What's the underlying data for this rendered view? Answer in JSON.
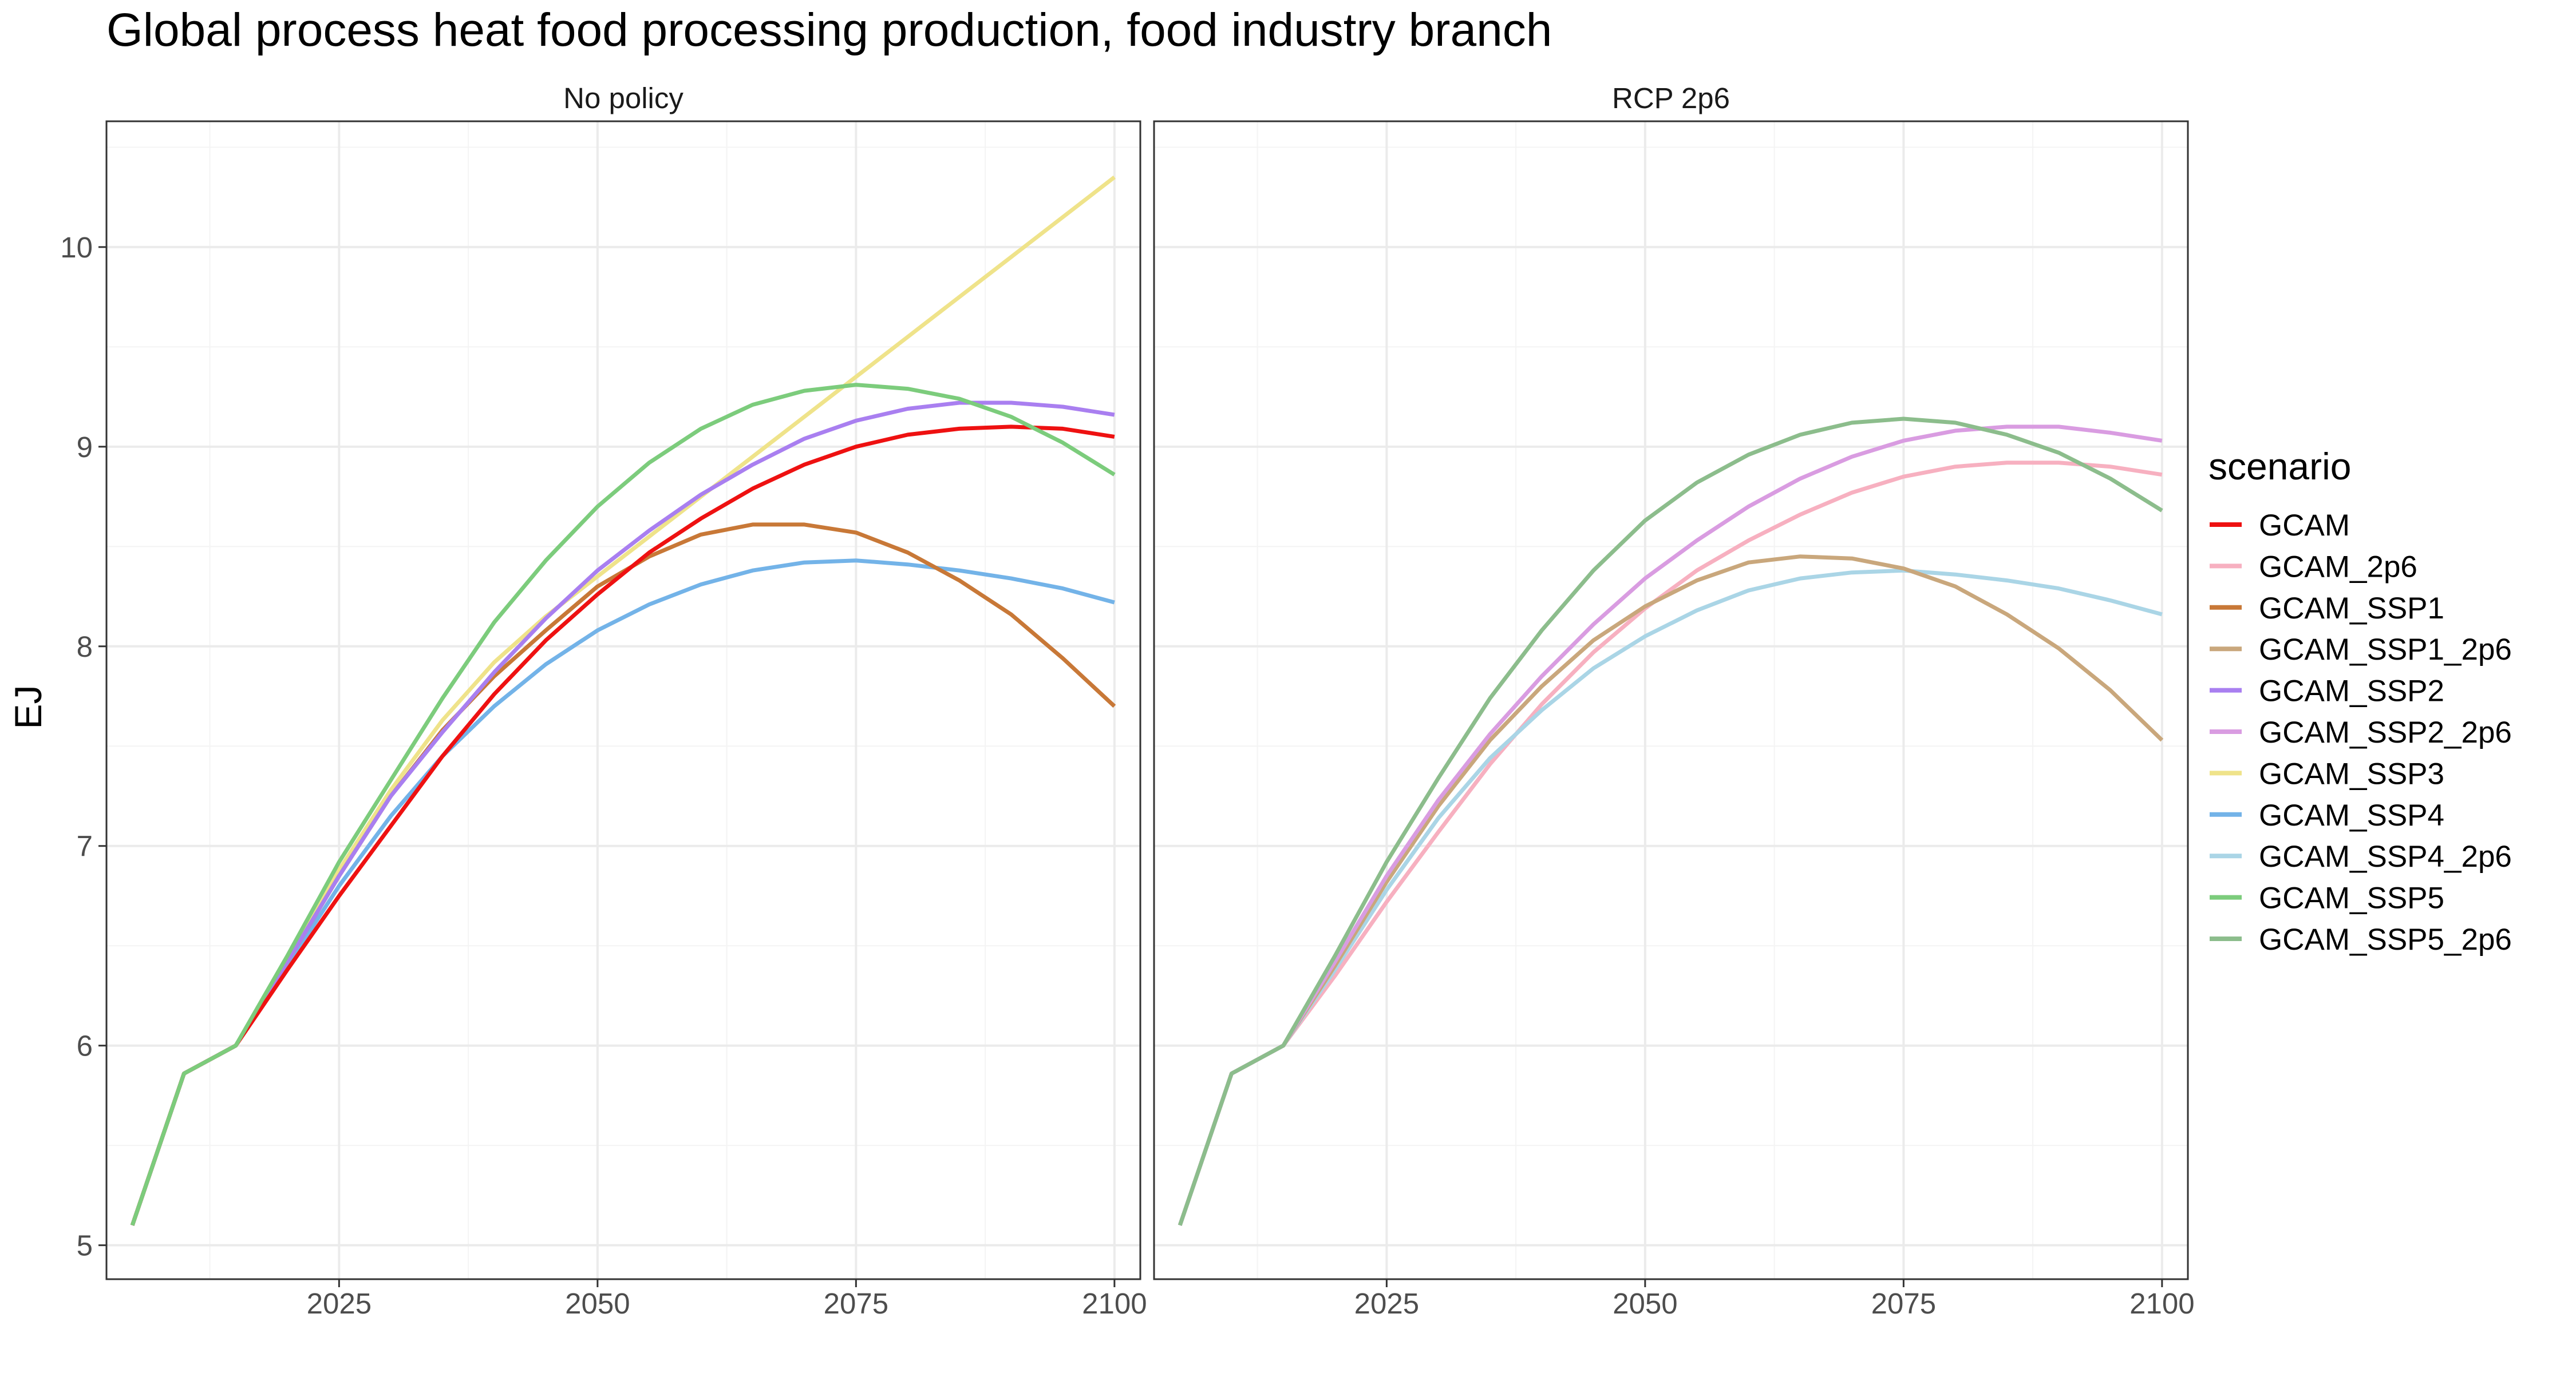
{
  "chart_data": {
    "type": "line",
    "title": "Global process heat food processing production, food industry branch",
    "xlabel": "",
    "ylabel": "EJ",
    "xlim": [
      2002.5,
      2102.5
    ],
    "ylim": [
      4.83,
      10.63
    ],
    "x_ticks": [
      2025,
      2050,
      2075,
      2100
    ],
    "y_ticks": [
      5,
      6,
      7,
      8,
      9,
      10
    ],
    "grid": true,
    "legend_title": "scenario",
    "legend_position": "right",
    "legend": [
      {
        "name": "GCAM",
        "color": "#ee1111"
      },
      {
        "name": "GCAM_2p6",
        "color": "#f7b0c0"
      },
      {
        "name": "GCAM_SSP1",
        "color": "#c87837"
      },
      {
        "name": "GCAM_SSP1_2p6",
        "color": "#c9a77c"
      },
      {
        "name": "GCAM_SSP2",
        "color": "#a97ff0"
      },
      {
        "name": "GCAM_SSP2_2p6",
        "color": "#d99ce1"
      },
      {
        "name": "GCAM_SSP3",
        "color": "#efe38a"
      },
      {
        "name": "GCAM_SSP4",
        "color": "#73b3e8"
      },
      {
        "name": "GCAM_SSP4_2p6",
        "color": "#aad5e6"
      },
      {
        "name": "GCAM_SSP5",
        "color": "#7ccc7c"
      },
      {
        "name": "GCAM_SSP5_2p6",
        "color": "#8cbd8c"
      }
    ],
    "panels": [
      {
        "label": "No policy",
        "series": [
          {
            "name": "GCAM_SSP3",
            "color": "#efe38a",
            "x": [
              2005,
              2010,
              2015,
              2020,
              2025,
              2030,
              2035,
              2040,
              2045,
              2050,
              2055,
              2060,
              2065,
              2070,
              2075,
              2080,
              2085,
              2090,
              2095,
              2100
            ],
            "y": [
              5.1,
              5.86,
              6.0,
              6.43,
              6.88,
              7.28,
              7.63,
              7.92,
              8.15,
              8.35,
              8.55,
              8.75,
              8.95,
              9.15,
              9.35,
              9.55,
              9.75,
              9.95,
              10.15,
              10.35
            ]
          },
          {
            "name": "GCAM_SSP4",
            "color": "#73b3e8",
            "x": [
              2005,
              2010,
              2015,
              2020,
              2025,
              2030,
              2035,
              2040,
              2045,
              2050,
              2055,
              2060,
              2065,
              2070,
              2075,
              2080,
              2085,
              2090,
              2095,
              2100
            ],
            "y": [
              5.1,
              5.86,
              6.0,
              6.4,
              6.8,
              7.15,
              7.45,
              7.7,
              7.91,
              8.08,
              8.21,
              8.31,
              8.38,
              8.42,
              8.43,
              8.41,
              8.38,
              8.34,
              8.29,
              8.22
            ]
          },
          {
            "name": "GCAM_SSP1",
            "color": "#c87837",
            "x": [
              2005,
              2010,
              2015,
              2020,
              2025,
              2030,
              2035,
              2040,
              2045,
              2050,
              2055,
              2060,
              2065,
              2070,
              2075,
              2080,
              2085,
              2090,
              2095,
              2100
            ],
            "y": [
              5.1,
              5.86,
              6.0,
              6.42,
              6.85,
              7.25,
              7.58,
              7.85,
              8.08,
              8.3,
              8.45,
              8.56,
              8.61,
              8.61,
              8.57,
              8.47,
              8.33,
              8.16,
              7.94,
              7.7
            ]
          },
          {
            "name": "GCAM_SSP2",
            "color": "#a97ff0",
            "x": [
              2005,
              2010,
              2015,
              2020,
              2025,
              2030,
              2035,
              2040,
              2045,
              2050,
              2055,
              2060,
              2065,
              2070,
              2075,
              2080,
              2085,
              2090,
              2095,
              2100
            ],
            "y": [
              5.1,
              5.86,
              6.0,
              6.42,
              6.85,
              7.25,
              7.57,
              7.87,
              8.14,
              8.38,
              8.58,
              8.76,
              8.91,
              9.04,
              9.13,
              9.19,
              9.22,
              9.22,
              9.2,
              9.16
            ]
          },
          {
            "name": "GCAM",
            "color": "#ee1111",
            "x": [
              2005,
              2010,
              2015,
              2020,
              2025,
              2030,
              2035,
              2040,
              2045,
              2050,
              2055,
              2060,
              2065,
              2070,
              2075,
              2080,
              2085,
              2090,
              2095,
              2100
            ],
            "y": [
              5.1,
              5.86,
              6.0,
              6.38,
              6.75,
              7.1,
              7.45,
              7.76,
              8.03,
              8.26,
              8.47,
              8.64,
              8.79,
              8.91,
              9.0,
              9.06,
              9.09,
              9.1,
              9.09,
              9.05
            ]
          },
          {
            "name": "GCAM_SSP5",
            "color": "#7ccc7c",
            "x": [
              2005,
              2010,
              2015,
              2020,
              2025,
              2030,
              2035,
              2040,
              2045,
              2050,
              2055,
              2060,
              2065,
              2070,
              2075,
              2080,
              2085,
              2090,
              2095,
              2100
            ],
            "y": [
              5.1,
              5.86,
              6.0,
              6.45,
              6.92,
              7.33,
              7.74,
              8.12,
              8.43,
              8.7,
              8.92,
              9.09,
              9.21,
              9.28,
              9.31,
              9.29,
              9.24,
              9.15,
              9.02,
              8.86
            ]
          }
        ]
      },
      {
        "label": "RCP 2p6",
        "series": [
          {
            "name": "GCAM_2p6",
            "color": "#f7b0c0",
            "x": [
              2005,
              2010,
              2015,
              2020,
              2025,
              2030,
              2035,
              2040,
              2045,
              2050,
              2055,
              2060,
              2065,
              2070,
              2075,
              2080,
              2085,
              2090,
              2095,
              2100
            ],
            "y": [
              5.1,
              5.86,
              6.0,
              6.35,
              6.72,
              7.07,
              7.41,
              7.71,
              7.97,
              8.19,
              8.38,
              8.53,
              8.66,
              8.77,
              8.85,
              8.9,
              8.92,
              8.92,
              8.9,
              8.86
            ]
          },
          {
            "name": "GCAM_SSP4_2p6",
            "color": "#aad5e6",
            "x": [
              2005,
              2010,
              2015,
              2020,
              2025,
              2030,
              2035,
              2040,
              2045,
              2050,
              2055,
              2060,
              2065,
              2070,
              2075,
              2080,
              2085,
              2090,
              2095,
              2100
            ],
            "y": [
              5.1,
              5.86,
              6.0,
              6.38,
              6.78,
              7.14,
              7.44,
              7.68,
              7.89,
              8.05,
              8.18,
              8.28,
              8.34,
              8.37,
              8.38,
              8.36,
              8.33,
              8.29,
              8.23,
              8.16
            ]
          },
          {
            "name": "GCAM_SSP1_2p6",
            "color": "#c9a77c",
            "x": [
              2005,
              2010,
              2015,
              2020,
              2025,
              2030,
              2035,
              2040,
              2045,
              2050,
              2055,
              2060,
              2065,
              2070,
              2075,
              2080,
              2085,
              2090,
              2095,
              2100
            ],
            "y": [
              5.1,
              5.86,
              6.0,
              6.4,
              6.82,
              7.2,
              7.53,
              7.8,
              8.03,
              8.2,
              8.33,
              8.42,
              8.45,
              8.44,
              8.39,
              8.3,
              8.16,
              7.99,
              7.78,
              7.53
            ]
          },
          {
            "name": "GCAM_SSP2_2p6",
            "color": "#d99ce1",
            "x": [
              2005,
              2010,
              2015,
              2020,
              2025,
              2030,
              2035,
              2040,
              2045,
              2050,
              2055,
              2060,
              2065,
              2070,
              2075,
              2080,
              2085,
              2090,
              2095,
              2100
            ],
            "y": [
              5.1,
              5.86,
              6.0,
              6.42,
              6.85,
              7.23,
              7.56,
              7.85,
              8.11,
              8.34,
              8.53,
              8.7,
              8.84,
              8.95,
              9.03,
              9.08,
              9.1,
              9.1,
              9.07,
              9.03
            ]
          },
          {
            "name": "GCAM_SSP5_2p6",
            "color": "#8cbd8c",
            "x": [
              2005,
              2010,
              2015,
              2020,
              2025,
              2030,
              2035,
              2040,
              2045,
              2050,
              2055,
              2060,
              2065,
              2070,
              2075,
              2080,
              2085,
              2090,
              2095,
              2100
            ],
            "y": [
              5.1,
              5.86,
              6.0,
              6.45,
              6.92,
              7.34,
              7.74,
              8.08,
              8.38,
              8.63,
              8.82,
              8.96,
              9.06,
              9.12,
              9.14,
              9.12,
              9.06,
              8.97,
              8.84,
              8.68
            ]
          }
        ]
      }
    ]
  }
}
